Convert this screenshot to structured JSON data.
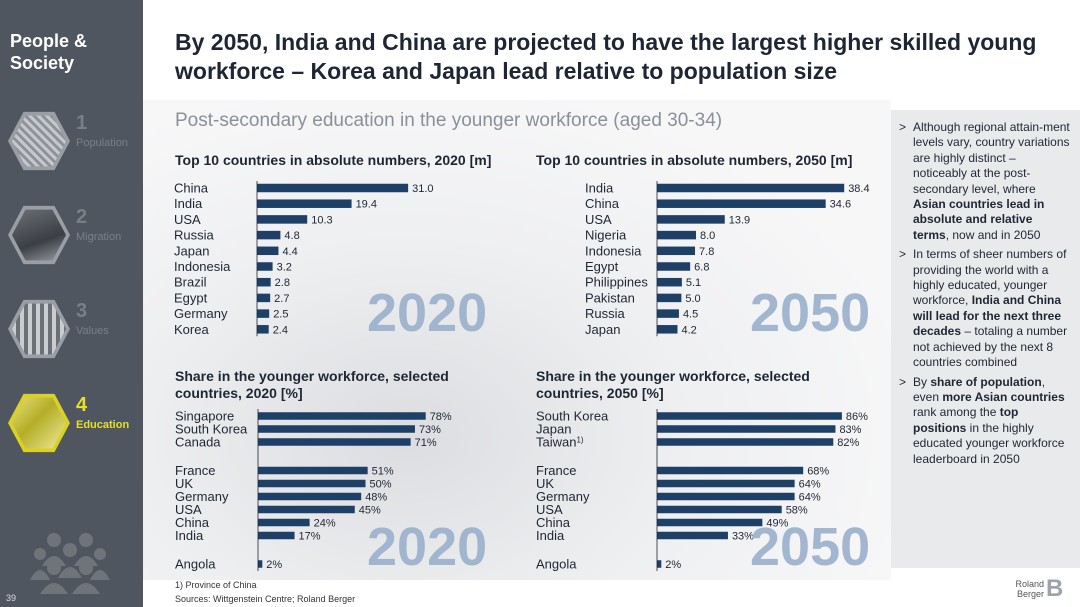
{
  "sidebar": {
    "title": "People & Society",
    "items": [
      {
        "num": "1",
        "label": "Population",
        "icon": "population-crowd-icon"
      },
      {
        "num": "2",
        "label": "Migration",
        "icon": "migration-sign-icon"
      },
      {
        "num": "3",
        "label": "Values",
        "icon": "values-building-icon"
      },
      {
        "num": "4",
        "label": "Education",
        "icon": "education-classroom-icon"
      }
    ],
    "active_color": "#d9d225",
    "page_number": "39"
  },
  "header": {
    "title": "By 2050, India and China are projected to have the largest higher skilled young workforce – Korea and Japan lead relative to population size",
    "subtitle": "Post-secondary education in the younger workforce (aged 30-34)"
  },
  "right_panel": {
    "bullets": [
      {
        "html": "Although regional attain-ment levels vary, country variations are highly distinct – noticeably at the post-secondary level, where <b>Asian countries lead in absolute and relative terms</b>, now and in 2050"
      },
      {
        "html": "In terms of sheer numbers of providing the world with a highly educated, younger workforce, <b>India and China will lead for the next three decades</b> – totaling a number not achieved by the next 8 countries combined"
      },
      {
        "html": "By <b>share of population</b>, even <b>more Asian countries</b> rank among the <b>top positions</b> in the highly educated younger workforce leaderboard in 2050"
      }
    ]
  },
  "colors": {
    "bar": "#1e3f66",
    "year_label": "#9ab0cc",
    "text": "#1f2633"
  },
  "chart_data": [
    {
      "type": "bar",
      "orientation": "horizontal",
      "title": "Top 10 countries in absolute numbers, 2020 [m]",
      "year_label": "2020",
      "categories": [
        "China",
        "India",
        "USA",
        "Russia",
        "Japan",
        "Indonesia",
        "Brazil",
        "Egypt",
        "Germany",
        "Korea"
      ],
      "values": [
        31.0,
        19.4,
        10.3,
        4.8,
        4.4,
        3.2,
        2.8,
        2.7,
        2.5,
        2.4
      ],
      "labels": [
        "31.0",
        "19.4",
        "10.3",
        "4.8",
        "4.4",
        "3.2",
        "2.8",
        "2.7",
        "2.5",
        "2.4"
      ],
      "xlim": [
        0,
        40
      ]
    },
    {
      "type": "bar",
      "orientation": "horizontal",
      "title": "Top 10 countries in absolute numbers, 2050 [m]",
      "year_label": "2050",
      "categories": [
        "India",
        "China",
        "USA",
        "Nigeria",
        "Indonesia",
        "Egypt",
        "Philippines",
        "Pakistan",
        "Russia",
        "Japan"
      ],
      "values": [
        38.4,
        34.6,
        13.9,
        8.0,
        7.8,
        6.8,
        5.1,
        5.0,
        4.5,
        4.2
      ],
      "labels": [
        "38.4",
        "34.6",
        "13.9",
        "8.0",
        "7.8",
        "6.8",
        "5.1",
        "5.0",
        "4.5",
        "4.2"
      ],
      "xlim": [
        0,
        40
      ]
    },
    {
      "type": "bar",
      "orientation": "horizontal",
      "title": "Share in the younger workforce, selected countries, 2020 [%]",
      "year_label": "2020",
      "categories": [
        "Singapore",
        "South Korea",
        "Canada",
        "France",
        "UK",
        "Germany",
        "USA",
        "China",
        "India",
        "Angola"
      ],
      "groups": [
        3,
        6,
        1
      ],
      "values": [
        78,
        73,
        71,
        51,
        50,
        48,
        45,
        24,
        17,
        2
      ],
      "labels": [
        "78%",
        "73%",
        "71%",
        "51%",
        "50%",
        "48%",
        "45%",
        "24%",
        "17%",
        "2%"
      ],
      "xlim": [
        0,
        100
      ]
    },
    {
      "type": "bar",
      "orientation": "horizontal",
      "title": "Share in the younger workforce, selected countries, 2050 [%]",
      "year_label": "2050",
      "categories": [
        "South Korea",
        "Japan",
        "Taiwan",
        "France",
        "UK",
        "Germany",
        "USA",
        "China",
        "India",
        "Angola"
      ],
      "category_superscripts": [
        "",
        "",
        "1)",
        "",
        "",
        "",
        "",
        "",
        "",
        ""
      ],
      "groups": [
        3,
        6,
        1
      ],
      "values": [
        86,
        83,
        82,
        68,
        64,
        64,
        58,
        49,
        33,
        2
      ],
      "labels": [
        "86%",
        "83%",
        "82%",
        "68%",
        "64%",
        "64%",
        "58%",
        "49%",
        "33%",
        "2%"
      ],
      "xlim": [
        0,
        100
      ]
    }
  ],
  "footer": {
    "footnote": "1) Province of China",
    "source": "Sources: Wittgenstein Centre; Roland Berger",
    "logo_text": "Roland Berger"
  }
}
